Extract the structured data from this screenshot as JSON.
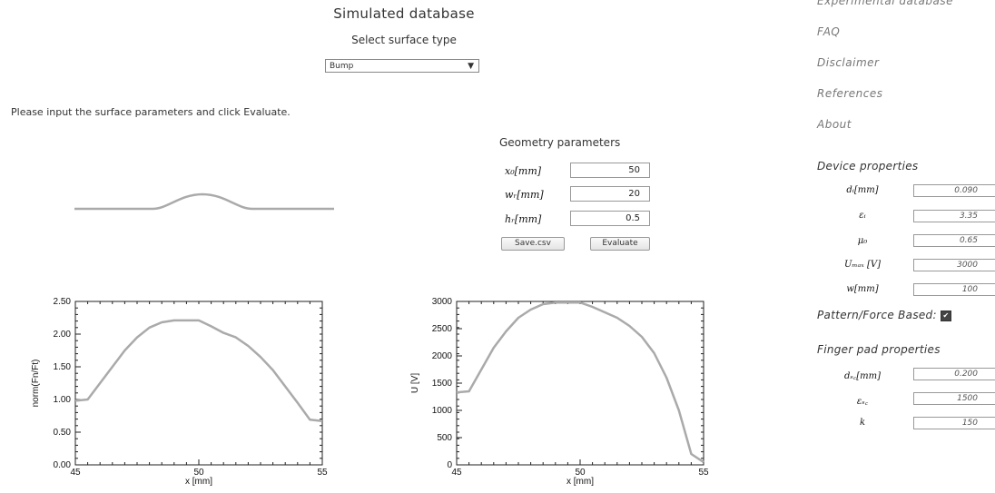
{
  "header": {
    "title": "Simulated database",
    "select_label": "Select surface type",
    "surface_type": "Bump",
    "instructions": "Please input the surface parameters and click Evaluate."
  },
  "geometry": {
    "title": "Geometry parameters",
    "params": [
      {
        "label": "x₀[mm]",
        "value": "50"
      },
      {
        "label": "wᵣ[mm]",
        "value": "20"
      },
      {
        "label": "hᵣ[mm]",
        "value": "0.5"
      }
    ],
    "save_label": "Save.csv",
    "evaluate_label": "Evaluate"
  },
  "nav": {
    "items": [
      "Experimental database",
      "FAQ",
      "Disclaimer",
      "References",
      "About"
    ]
  },
  "device": {
    "title": "Device properties",
    "params": [
      {
        "label": "dᵢ[mm]",
        "value": "0.090"
      },
      {
        "label": "εᵢ",
        "value": "3.35"
      },
      {
        "label": "μ₀",
        "value": "0.65"
      },
      {
        "label": "Uₘₐₓ [V]",
        "value": "3000"
      },
      {
        "label": "w[mm]",
        "value": "100"
      }
    ],
    "pattern_label": "Pattern/Force Based:",
    "pattern_checked": true
  },
  "finger": {
    "title": "Finger pad properties",
    "params": [
      {
        "label": "dₛ꜀[mm]",
        "value": "0.200"
      },
      {
        "label": "εₛ꜀",
        "value": "1500"
      },
      {
        "label": "k",
        "value": "150"
      }
    ]
  },
  "chart_data": [
    {
      "type": "line",
      "xlabel": "x [mm]",
      "ylabel": "norm(Fn/Ft)",
      "xlim": [
        45,
        55
      ],
      "ylim": [
        0,
        2.5
      ],
      "xticks": [
        45,
        50,
        55
      ],
      "yticks": [
        "0.00",
        "0.50",
        "1.00",
        "1.50",
        "2.00",
        "2.50"
      ],
      "x": [
        45,
        45.5,
        46,
        46.5,
        47,
        47.5,
        48,
        48.5,
        49,
        49.5,
        50,
        50.5,
        51,
        51.5,
        52,
        52.5,
        53,
        53.5,
        54,
        54.5,
        55
      ],
      "y": [
        0.98,
        1.0,
        1.25,
        1.5,
        1.75,
        1.95,
        2.1,
        2.18,
        2.21,
        2.21,
        2.21,
        2.12,
        2.02,
        1.95,
        1.82,
        1.65,
        1.45,
        1.2,
        0.95,
        0.69,
        0.67
      ],
      "color": "#aaaaaa"
    },
    {
      "type": "line",
      "xlabel": "x [mm]",
      "ylabel": "U [V]",
      "xlim": [
        45,
        55
      ],
      "ylim": [
        0,
        3000
      ],
      "xticks": [
        45,
        50,
        55
      ],
      "yticks": [
        "0",
        "500",
        "1000",
        "1500",
        "2000",
        "2500",
        "3000"
      ],
      "x": [
        45,
        45.5,
        46,
        46.5,
        47,
        47.5,
        48,
        48.5,
        49,
        49.5,
        50,
        50.5,
        51,
        51.5,
        52,
        52.5,
        53,
        53.5,
        54,
        54.5,
        55
      ],
      "y": [
        1330,
        1350,
        1750,
        2150,
        2450,
        2700,
        2850,
        2950,
        2980,
        2980,
        2980,
        2900,
        2800,
        2700,
        2550,
        2350,
        2050,
        1600,
        1000,
        200,
        50
      ],
      "color": "#aaaaaa"
    }
  ],
  "profile": {
    "description_color": "#aaaaaa"
  }
}
